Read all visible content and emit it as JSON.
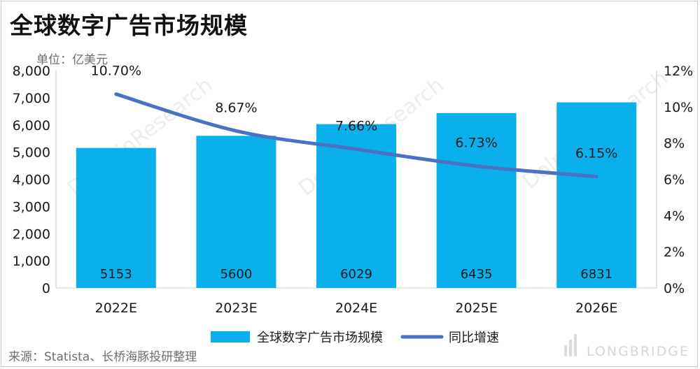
{
  "title": "全球数字广告市场规模",
  "unit": "单位：亿美元",
  "source": "来源：Statista、长桥海豚投研整理",
  "brand": "LONGBRIDGE",
  "watermark": "DolphinResearch",
  "colors": {
    "bar": "#0ab0ec",
    "line": "#4a72c4",
    "axis": "#c8c8c8"
  },
  "chart_data": {
    "type": "bar",
    "title": "全球数字广告市场规模",
    "categories": [
      "2022E",
      "2023E",
      "2024E",
      "2025E",
      "2026E"
    ],
    "series": [
      {
        "name": "全球数字广告市场规模",
        "type": "bar",
        "axis": "left",
        "values": [
          5153,
          5600,
          6029,
          6435,
          6831
        ],
        "labels": [
          "5153",
          "5600",
          "6029",
          "6435",
          "6831"
        ]
      },
      {
        "name": "同比增速",
        "type": "line",
        "axis": "right",
        "values": [
          10.7,
          8.67,
          7.66,
          6.73,
          6.15
        ],
        "labels": [
          "10.70%",
          "8.67%",
          "7.66%",
          "6.73%",
          "6.15%"
        ]
      }
    ],
    "y_left": {
      "min": 0,
      "max": 8000,
      "ticks": [
        "0",
        "1,000",
        "2,000",
        "3,000",
        "4,000",
        "5,000",
        "6,000",
        "7,000",
        "8,000"
      ]
    },
    "y_right": {
      "min": 0,
      "max": 12,
      "ticks": [
        "0%",
        "2%",
        "4%",
        "6%",
        "8%",
        "10%",
        "12%"
      ]
    },
    "legend": {
      "position": "bottom",
      "items": [
        "全球数字广告市场规模",
        "同比增速"
      ]
    }
  }
}
